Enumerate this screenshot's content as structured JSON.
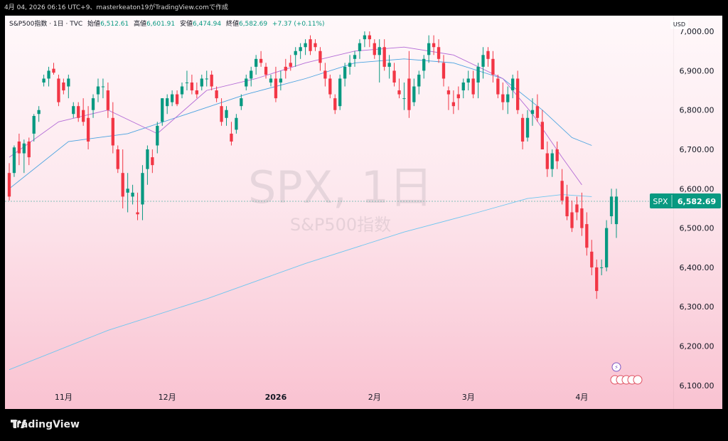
{
  "header": {
    "caption": "4月 04, 2026 06:16 UTC+9、masterkeaton19がTradingView.comで作成"
  },
  "legend": {
    "symbol": "S&P500指数 · 1日 · TVC",
    "open_label": "始値",
    "open": "6,512.61",
    "high_label": "高値",
    "high": "6,601.91",
    "low_label": "安値",
    "low": "6,474.94",
    "close_label": "終値",
    "close": "6,582.69",
    "change": "+7.37 (+0.11%)"
  },
  "currency": "USD",
  "watermark": {
    "big": "SPX, 1日",
    "small": "S&P500指数"
  },
  "price_tag": {
    "symbol": "SPX",
    "value": "6,582.69"
  },
  "footer": {
    "brand": "TradingView"
  },
  "colors": {
    "up": "#089981",
    "down": "#f23645",
    "ma_short": "#b46cd6",
    "ma_mid": "#4aa3e0",
    "ma_long": "#6ec6f0",
    "tag_bg": "#089981"
  },
  "chart_data": {
    "type": "candlestick",
    "ylim": [
      6040,
      7040
    ],
    "y_ticks": [
      "7,000.00",
      "6,900.00",
      "6,800.00",
      "6,700.00",
      "6,600.00",
      "6,500.00",
      "6,400.00",
      "6,300.00",
      "6,200.00",
      "6,100.00"
    ],
    "y_tick_values": [
      7000,
      6900,
      6800,
      6700,
      6600,
      6500,
      6400,
      6300,
      6200,
      6100
    ],
    "x_ticks": [
      {
        "label": "11月",
        "index": 11
      },
      {
        "label": "12月",
        "index": 32
      },
      {
        "label": "2026",
        "index": 54
      },
      {
        "label": "2月",
        "index": 74
      },
      {
        "label": "3月",
        "index": 93
      },
      {
        "label": "4月",
        "index": 116
      }
    ],
    "candles": [
      [
        6640,
        6665,
        6570,
        6580
      ],
      [
        6640,
        6710,
        6630,
        6705
      ],
      [
        6720,
        6740,
        6660,
        6690
      ],
      [
        6690,
        6725,
        6640,
        6715
      ],
      [
        6720,
        6730,
        6660,
        6680
      ],
      [
        6740,
        6790,
        6720,
        6785
      ],
      [
        6790,
        6810,
        6770,
        6800
      ],
      [
        6870,
        6890,
        6860,
        6880
      ],
      [
        6880,
        6910,
        6860,
        6900
      ],
      [
        6905,
        6920,
        6890,
        6895
      ],
      [
        6880,
        6890,
        6810,
        6820
      ],
      [
        6870,
        6880,
        6840,
        6850
      ],
      [
        6860,
        6890,
        6830,
        6880
      ],
      [
        6790,
        6820,
        6780,
        6810
      ],
      [
        6810,
        6820,
        6770,
        6780
      ],
      [
        6800,
        6830,
        6760,
        6770
      ],
      [
        6780,
        6810,
        6700,
        6720
      ],
      [
        6800,
        6840,
        6780,
        6830
      ],
      [
        6840,
        6880,
        6820,
        6860
      ],
      [
        6860,
        6880,
        6830,
        6860
      ],
      [
        6850,
        6870,
        6780,
        6800
      ],
      [
        6780,
        6820,
        6690,
        6710
      ],
      [
        6700,
        6710,
        6640,
        6650
      ],
      [
        6640,
        6700,
        6550,
        6580
      ],
      [
        6590,
        6640,
        6540,
        6600
      ],
      [
        6580,
        6610,
        6560,
        6590
      ],
      [
        6540,
        6590,
        6520,
        6535
      ],
      [
        6560,
        6660,
        6520,
        6640
      ],
      [
        6650,
        6710,
        6610,
        6700
      ],
      [
        6680,
        6700,
        6640,
        6660
      ],
      [
        6710,
        6770,
        6690,
        6760
      ],
      [
        6770,
        6830,
        6760,
        6830
      ],
      [
        6810,
        6840,
        6790,
        6830
      ],
      [
        6820,
        6850,
        6810,
        6840
      ],
      [
        6840,
        6850,
        6810,
        6815
      ],
      [
        6840,
        6870,
        6830,
        6860
      ],
      [
        6870,
        6900,
        6850,
        6870
      ],
      [
        6870,
        6890,
        6840,
        6850
      ],
      [
        6850,
        6870,
        6830,
        6840
      ],
      [
        6860,
        6890,
        6850,
        6880
      ],
      [
        6880,
        6900,
        6860,
        6880
      ],
      [
        6890,
        6900,
        6850,
        6860
      ],
      [
        6850,
        6860,
        6820,
        6830
      ],
      [
        6810,
        6830,
        6760,
        6770
      ],
      [
        6780,
        6810,
        6760,
        6800
      ],
      [
        6740,
        6770,
        6710,
        6720
      ],
      [
        6750,
        6790,
        6740,
        6780
      ],
      [
        6810,
        6840,
        6800,
        6830
      ],
      [
        6860,
        6890,
        6850,
        6880
      ],
      [
        6880,
        6910,
        6860,
        6900
      ],
      [
        6910,
        6940,
        6890,
        6930
      ],
      [
        6930,
        6950,
        6910,
        6920
      ],
      [
        6910,
        6920,
        6880,
        6890
      ],
      [
        6870,
        6890,
        6860,
        6880
      ],
      [
        6880,
        6910,
        6820,
        6830
      ],
      [
        6870,
        6900,
        6850,
        6880
      ],
      [
        6910,
        6930,
        6880,
        6900
      ],
      [
        6920,
        6940,
        6900,
        6910
      ],
      [
        6940,
        6960,
        6910,
        6950
      ],
      [
        6950,
        6970,
        6930,
        6960
      ],
      [
        6960,
        6980,
        6940,
        6970
      ],
      [
        6980,
        6990,
        6940,
        6950
      ],
      [
        6970,
        6980,
        6950,
        6960
      ],
      [
        6950,
        6960,
        6900,
        6920
      ],
      [
        6900,
        6920,
        6860,
        6880
      ],
      [
        6880,
        6890,
        6830,
        6840
      ],
      [
        6830,
        6840,
        6790,
        6800
      ],
      [
        6810,
        6890,
        6800,
        6880
      ],
      [
        6880,
        6920,
        6860,
        6910
      ],
      [
        6910,
        6940,
        6890,
        6920
      ],
      [
        6930,
        6950,
        6910,
        6940
      ],
      [
        6950,
        6980,
        6930,
        6970
      ],
      [
        6980,
        7000,
        6960,
        6990
      ],
      [
        6990,
        7000,
        6960,
        6980
      ],
      [
        6970,
        6980,
        6930,
        6940
      ],
      [
        6940,
        6980,
        6870,
        6960
      ],
      [
        6960,
        6980,
        6900,
        6910
      ],
      [
        6910,
        6940,
        6880,
        6920
      ],
      [
        6900,
        6920,
        6860,
        6870
      ],
      [
        6850,
        6880,
        6830,
        6840
      ],
      [
        6830,
        6870,
        6800,
        6830
      ],
      [
        6880,
        6950,
        6780,
        6800
      ],
      [
        6820,
        6880,
        6810,
        6860
      ],
      [
        6860,
        6900,
        6840,
        6890
      ],
      [
        6900,
        6940,
        6880,
        6930
      ],
      [
        6940,
        6990,
        6920,
        6970
      ],
      [
        6970,
        6990,
        6940,
        6960
      ],
      [
        6960,
        6980,
        6920,
        6930
      ],
      [
        6920,
        6940,
        6860,
        6880
      ],
      [
        6850,
        6860,
        6800,
        6840
      ],
      [
        6820,
        6850,
        6790,
        6810
      ],
      [
        6840,
        6860,
        6800,
        6830
      ],
      [
        6850,
        6880,
        6830,
        6870
      ],
      [
        6870,
        6900,
        6850,
        6880
      ],
      [
        6880,
        6900,
        6830,
        6840
      ],
      [
        6870,
        6920,
        6830,
        6910
      ],
      [
        6910,
        6960,
        6880,
        6940
      ],
      [
        6950,
        6960,
        6910,
        6930
      ],
      [
        6930,
        6950,
        6870,
        6890
      ],
      [
        6880,
        6890,
        6830,
        6840
      ],
      [
        6840,
        6870,
        6800,
        6820
      ],
      [
        6820,
        6860,
        6790,
        6840
      ],
      [
        6850,
        6890,
        6830,
        6880
      ],
      [
        6880,
        6900,
        6790,
        6800
      ],
      [
        6780,
        6790,
        6700,
        6720
      ],
      [
        6730,
        6800,
        6720,
        6780
      ],
      [
        6790,
        6830,
        6760,
        6800
      ],
      [
        6810,
        6840,
        6770,
        6780
      ],
      [
        6770,
        6800,
        6700,
        6700
      ],
      [
        6690,
        6720,
        6630,
        6650
      ],
      [
        6650,
        6700,
        6630,
        6690
      ],
      [
        6700,
        6720,
        6650,
        6670
      ],
      [
        6620,
        6650,
        6560,
        6570
      ],
      [
        6580,
        6610,
        6520,
        6530
      ],
      [
        6540,
        6570,
        6490,
        6500
      ],
      [
        6560,
        6580,
        6520,
        6540
      ],
      [
        6550,
        6590,
        6480,
        6500
      ],
      [
        6510,
        6540,
        6430,
        6450
      ],
      [
        6440,
        6470,
        6380,
        6400
      ],
      [
        6400,
        6420,
        6320,
        6340
      ],
      [
        6400,
        6420,
        6380,
        6400
      ],
      [
        6400,
        6520,
        6390,
        6500
      ],
      [
        6530,
        6600,
        6510,
        6580
      ],
      [
        6510,
        6600,
        6475,
        6580
      ]
    ],
    "ma_short": [
      [
        0,
        6680
      ],
      [
        10,
        6770
      ],
      [
        20,
        6800
      ],
      [
        30,
        6740
      ],
      [
        40,
        6850
      ],
      [
        50,
        6880
      ],
      [
        60,
        6920
      ],
      [
        70,
        6950
      ],
      [
        80,
        6960
      ],
      [
        90,
        6940
      ],
      [
        100,
        6880
      ],
      [
        106,
        6790
      ],
      [
        112,
        6680
      ],
      [
        116,
        6610
      ]
    ],
    "ma_mid": [
      [
        0,
        6600
      ],
      [
        12,
        6720
      ],
      [
        24,
        6740
      ],
      [
        36,
        6790
      ],
      [
        48,
        6840
      ],
      [
        60,
        6880
      ],
      [
        70,
        6920
      ],
      [
        80,
        6930
      ],
      [
        90,
        6920
      ],
      [
        100,
        6880
      ],
      [
        108,
        6800
      ],
      [
        114,
        6730
      ],
      [
        118,
        6710
      ]
    ],
    "ma_long": [
      [
        0,
        6140
      ],
      [
        20,
        6240
      ],
      [
        40,
        6320
      ],
      [
        60,
        6410
      ],
      [
        80,
        6490
      ],
      [
        95,
        6540
      ],
      [
        105,
        6575
      ],
      [
        112,
        6585
      ],
      [
        118,
        6580
      ]
    ]
  }
}
